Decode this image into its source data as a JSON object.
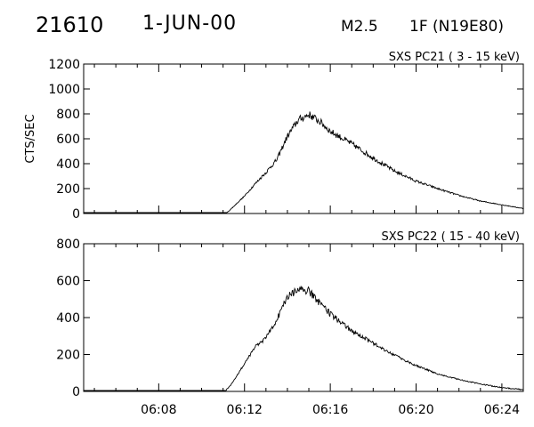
{
  "header": {
    "event_id": "21610",
    "date": "1-JUN-00",
    "goes_class": "M2.5",
    "optical_flare": "1F (N19E80)"
  },
  "chart_data": [
    {
      "type": "line",
      "title": "SXS PC21  (  3 - 15 keV)",
      "ylabel": "CTS/SEC",
      "xlim": [
        "06:04:30",
        "06:25:00"
      ],
      "ylim": [
        0,
        1200
      ],
      "y_ticks": [
        0,
        200,
        400,
        600,
        800,
        1000,
        1200
      ],
      "x_tick_labels": [],
      "grid": false,
      "series": [
        {
          "x": [
            "06:04:30",
            "06:06:00",
            "06:08:00",
            "06:10:00",
            "06:11:00",
            "06:11:20",
            "06:12:00",
            "06:12:30",
            "06:13:00",
            "06:13:30",
            "06:14:00",
            "06:14:30",
            "06:15:00",
            "06:15:30",
            "06:16:00",
            "06:17:00",
            "06:18:00",
            "06:19:00",
            "06:20:00",
            "06:21:00",
            "06:22:00",
            "06:23:00",
            "06:24:00",
            "06:25:00"
          ],
          "values": [
            -30,
            -30,
            -28,
            -26,
            -20,
            30,
            140,
            240,
            330,
            430,
            620,
            750,
            795,
            740,
            660,
            560,
            445,
            340,
            260,
            200,
            145,
            100,
            70,
            40
          ]
        }
      ]
    },
    {
      "type": "line",
      "title": "SXS PC22  ( 15 - 40 keV)",
      "ylabel": "",
      "xlim": [
        "06:04:30",
        "06:25:00"
      ],
      "ylim": [
        0,
        800
      ],
      "y_ticks": [
        0,
        200,
        400,
        600,
        800
      ],
      "x_tick_labels": [
        "06:08",
        "06:12",
        "06:16",
        "06:20",
        "06:24"
      ],
      "grid": false,
      "series": [
        {
          "x": [
            "06:04:30",
            "06:06:00",
            "06:08:00",
            "06:10:00",
            "06:11:00",
            "06:11:20",
            "06:12:00",
            "06:12:30",
            "06:13:00",
            "06:13:30",
            "06:14:00",
            "06:14:30",
            "06:15:00",
            "06:15:30",
            "06:16:00",
            "06:17:00",
            "06:18:00",
            "06:19:00",
            "06:20:00",
            "06:21:00",
            "06:22:00",
            "06:23:00",
            "06:24:00",
            "06:25:00"
          ],
          "values": [
            -20,
            -20,
            -18,
            -15,
            -10,
            30,
            150,
            240,
            290,
            390,
            510,
            550,
            545,
            480,
            420,
            330,
            260,
            195,
            140,
            95,
            65,
            40,
            20,
            10
          ]
        }
      ]
    }
  ]
}
